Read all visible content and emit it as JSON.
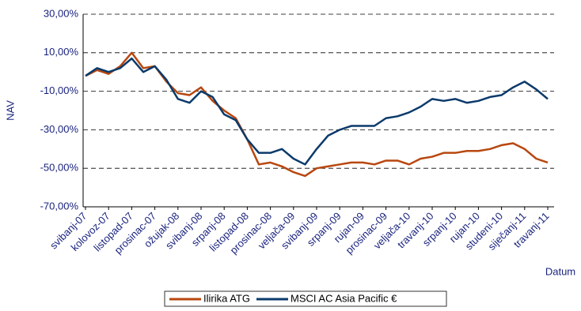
{
  "chart_data": {
    "type": "line",
    "y_label": "NAV",
    "x_label": "Datum",
    "categories": [
      "svibanj-07",
      null,
      "kolovoz-07",
      null,
      "listopad-07",
      null,
      "prosinac-07",
      null,
      "ožujak-08",
      null,
      "svibanj-08",
      null,
      "srpanj-08",
      null,
      "listopad-08",
      null,
      "prosinac-08",
      null,
      "veljača-09",
      null,
      "svibanj-09",
      null,
      "srpanj-09",
      null,
      "rujan-09",
      null,
      "prosinac-09",
      null,
      "veljača-10",
      null,
      "travanj-10",
      null,
      "srpanj-10",
      null,
      "rujan-10",
      null,
      "studeni-10",
      null,
      "siječanj-11",
      null,
      "travanj-11"
    ],
    "series": [
      {
        "name": "Ilirika ATG",
        "color": "#b8470f",
        "values": [
          -2,
          1,
          -1,
          3,
          10,
          2,
          3,
          -5,
          -11,
          -12,
          -8,
          -15,
          -20,
          -24,
          -35,
          -48,
          -47,
          -49,
          -52,
          -54,
          -50,
          -49,
          -48,
          -47,
          -47,
          -48,
          -46,
          -46,
          -48,
          -45,
          -44,
          -42,
          -42,
          -41,
          -41,
          -40,
          -38,
          -37,
          -40,
          -45,
          -47
        ]
      },
      {
        "name": "MSCI AC Asia Pacific €",
        "color": "#0b3a6b",
        "values": [
          -2,
          2,
          0,
          2,
          7,
          0,
          3,
          -4,
          -14,
          -16,
          -10,
          -13,
          -22,
          -25,
          -35,
          -42,
          -42,
          -40,
          -45,
          -48,
          -40,
          -33,
          -30,
          -28,
          -28,
          -28,
          -24,
          -23,
          -21,
          -18,
          -14,
          -15,
          -14,
          -16,
          -15,
          -13,
          -12,
          -8,
          -5,
          -9,
          -14
        ]
      }
    ],
    "ylim": [
      -70,
      30
    ],
    "yticks": [
      {
        "value": -70,
        "label": "-70,00%"
      },
      {
        "value": -50,
        "label": "-50,00%"
      },
      {
        "value": -30,
        "label": "-30,00%"
      },
      {
        "value": -10,
        "label": "-10,00%"
      },
      {
        "value": 10,
        "label": "10,00%"
      },
      {
        "value": 30,
        "label": "30,00%"
      }
    ],
    "grid": true,
    "legend": "bottom"
  }
}
